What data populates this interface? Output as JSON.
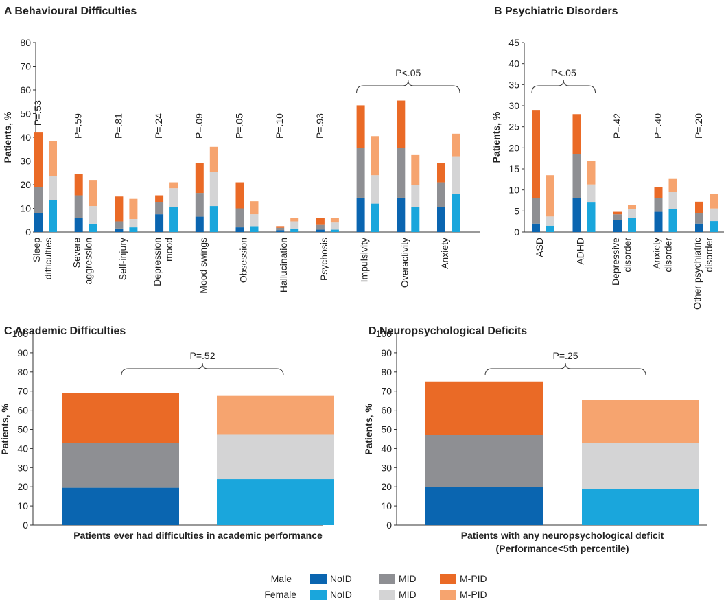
{
  "colors": {
    "male_noid": "#0a65b0",
    "male_mid": "#8e8f93",
    "male_mpid": "#ea6a26",
    "female_noid": "#1aa6dc",
    "female_mid": "#d4d4d5",
    "female_mpid": "#f6a46f",
    "axis": "#333333",
    "text": "#222222"
  },
  "legend": {
    "male_label": "Male",
    "female_label": "Female",
    "noid": "NoID",
    "mid": "MID",
    "mpid": "M-PID"
  },
  "chart_data": [
    {
      "id": "A",
      "type": "bar",
      "stacked": true,
      "panel_letter": "A",
      "title": "Behavioural  Difficulties",
      "ylabel": "Patients, %",
      "ylim": [
        0,
        80
      ],
      "yticks": [
        0,
        10,
        20,
        30,
        40,
        50,
        60,
        70,
        80
      ],
      "stack_order": [
        "NoID",
        "MID",
        "M-PID"
      ],
      "categories": [
        {
          "label": [
            "Sleep",
            "difficulties"
          ],
          "pvalue": "P=.53",
          "male": [
            8,
            11,
            23
          ],
          "female": [
            13.5,
            10,
            15
          ]
        },
        {
          "label": [
            "Severe",
            "aggression"
          ],
          "pvalue": "P=.59",
          "male": [
            6,
            9.5,
            9
          ],
          "female": [
            3.5,
            7.5,
            11
          ]
        },
        {
          "label": [
            "Self-injury"
          ],
          "pvalue": "P=.81",
          "male": [
            1.5,
            3,
            10.5
          ],
          "female": [
            2,
            3.5,
            8.5
          ]
        },
        {
          "label": [
            "Depression",
            "mood"
          ],
          "pvalue": "P=.24",
          "male": [
            7.5,
            5,
            3
          ],
          "female": [
            10.5,
            8,
            2.5
          ]
        },
        {
          "label": [
            "Mood swings"
          ],
          "pvalue": "P=.09",
          "male": [
            6.5,
            10,
            12.5
          ],
          "female": [
            11,
            14.5,
            10.5
          ]
        },
        {
          "label": [
            "Obsession"
          ],
          "pvalue": "P=.05",
          "male": [
            2,
            8,
            11
          ],
          "female": [
            2.5,
            5,
            5.5
          ]
        },
        {
          "label": [
            "Hallucination"
          ],
          "pvalue": "P=.10",
          "male": [
            0.8,
            1,
            0.7
          ],
          "female": [
            1.5,
            3,
            1.5
          ]
        },
        {
          "label": [
            "Psychosis"
          ],
          "pvalue": "P=.93",
          "male": [
            1,
            2,
            3
          ],
          "female": [
            1,
            3,
            2
          ]
        },
        {
          "label": [
            "Impulsivity"
          ],
          "pvalue": "",
          "male": [
            14.5,
            21,
            18
          ],
          "female": [
            12,
            12,
            16.5
          ]
        },
        {
          "label": [
            "Overactivity"
          ],
          "pvalue": "",
          "male": [
            14.5,
            21,
            20
          ],
          "female": [
            10.5,
            9.5,
            12.5
          ]
        },
        {
          "label": [
            "Anxiety"
          ],
          "pvalue": "",
          "male": [
            10.5,
            10.5,
            8
          ],
          "female": [
            16,
            16,
            9.5
          ]
        }
      ],
      "bracket": {
        "label": "P<.05",
        "from": 8,
        "to": 10
      }
    },
    {
      "id": "B",
      "type": "bar",
      "stacked": true,
      "panel_letter": "B",
      "title": "Psychiatric Disorders",
      "ylabel": "Patients, %",
      "ylim": [
        0,
        45
      ],
      "yticks": [
        0,
        5,
        10,
        15,
        20,
        25,
        30,
        35,
        40,
        45
      ],
      "stack_order": [
        "NoID",
        "MID",
        "M-PID"
      ],
      "categories": [
        {
          "label": [
            "ASD"
          ],
          "pvalue": "",
          "male": [
            2,
            6,
            21
          ],
          "female": [
            1.5,
            2.2,
            9.8
          ]
        },
        {
          "label": [
            "ADHD"
          ],
          "pvalue": "",
          "male": [
            8,
            10.5,
            9.5
          ],
          "female": [
            7,
            4.3,
            5.5
          ]
        },
        {
          "label": [
            "Depressive",
            "disorder"
          ],
          "pvalue": "P=.42",
          "male": [
            2.8,
            1.4,
            0.6
          ],
          "female": [
            3.4,
            2,
            1.1
          ]
        },
        {
          "label": [
            "Anxiety",
            "disorder"
          ],
          "pvalue": "P=.40",
          "male": [
            4.8,
            3.3,
            2.5
          ],
          "female": [
            5.5,
            4,
            3.1
          ]
        },
        {
          "label": [
            "Other psychiatric",
            "disorder"
          ],
          "pvalue": "P=.20",
          "male": [
            2,
            2.4,
            2.8
          ],
          "female": [
            2.6,
            3,
            3.5
          ]
        }
      ],
      "bracket": {
        "label": "P<.05",
        "from": 0,
        "to": 1
      }
    },
    {
      "id": "C",
      "type": "bar",
      "stacked": true,
      "panel_letter": "C",
      "title": "Academic Difficulties",
      "ylabel": "Patients, %",
      "ylim": [
        0,
        100
      ],
      "yticks": [
        0,
        10,
        20,
        30,
        40,
        50,
        60,
        70,
        80,
        90,
        100
      ],
      "stack_order": [
        "NoID",
        "MID",
        "M-PID"
      ],
      "xlabel": [
        "Patients ever had difficulties in academic performance"
      ],
      "male": [
        19.5,
        23.5,
        26
      ],
      "female": [
        24,
        23.5,
        20
      ],
      "bracket": {
        "label": "P=.52"
      }
    },
    {
      "id": "D",
      "type": "bar",
      "stacked": true,
      "panel_letter": "D",
      "title": "Neuropsychological Deficits",
      "ylabel": "Patients, %",
      "ylim": [
        0,
        100
      ],
      "yticks": [
        0,
        10,
        20,
        30,
        40,
        50,
        60,
        70,
        80,
        90,
        100
      ],
      "stack_order": [
        "NoID",
        "MID",
        "M-PID"
      ],
      "xlabel": [
        "Patients with any neuropsychological deficit",
        "(Performance<5th percentile)"
      ],
      "male": [
        20,
        27,
        28
      ],
      "female": [
        19,
        24,
        22.5
      ],
      "bracket": {
        "label": "P=.25"
      }
    }
  ]
}
